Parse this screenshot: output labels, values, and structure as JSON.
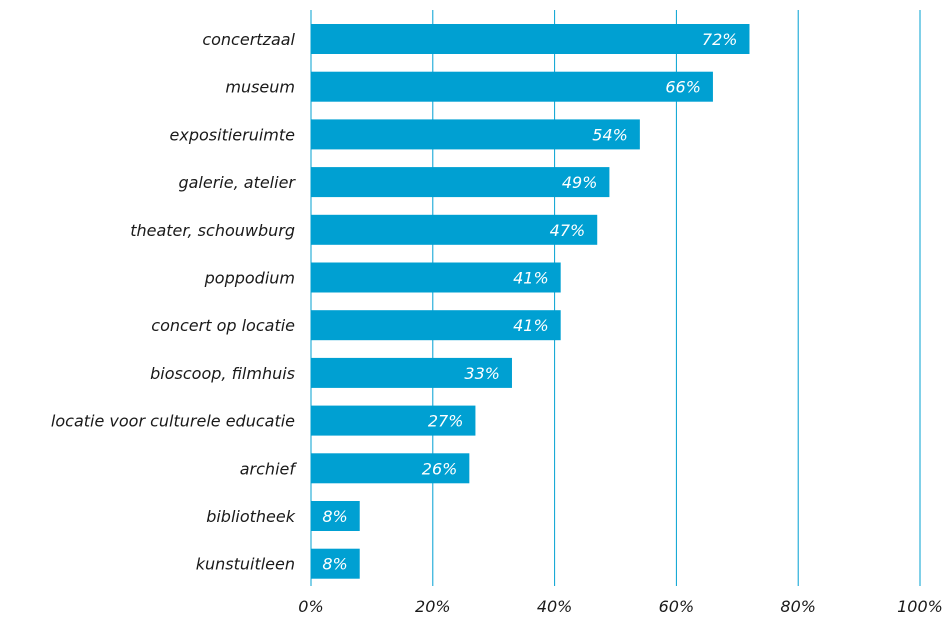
{
  "chart_data": {
    "type": "bar",
    "orientation": "horizontal",
    "categories": [
      "concertzaal",
      "museum",
      "expositieruimte",
      "galerie, atelier",
      "theater, schouwburg",
      "poppodium",
      "concert op locatie",
      "bioscoop, filmhuis",
      "locatie voor culturele educatie",
      "archief",
      "bibliotheek",
      "kunstuitleen"
    ],
    "values": [
      72,
      66,
      54,
      49,
      47,
      41,
      41,
      33,
      27,
      26,
      8,
      8
    ],
    "data_labels": [
      "72%",
      "66%",
      "54%",
      "49%",
      "47%",
      "41%",
      "41%",
      "33%",
      "27%",
      "26%",
      "8%",
      "8%"
    ],
    "xlim": [
      0,
      100
    ],
    "x_ticks": [
      0,
      20,
      40,
      60,
      80,
      100
    ],
    "x_tick_labels": [
      "0%",
      "20%",
      "40%",
      "60%",
      "80%",
      "100%"
    ],
    "title": "",
    "xlabel": "",
    "ylabel": "",
    "grid": "vertical",
    "bar_color": "#00A0D2",
    "grid_color": "#00A0D2",
    "data_label_color": "#FFFFFF"
  }
}
